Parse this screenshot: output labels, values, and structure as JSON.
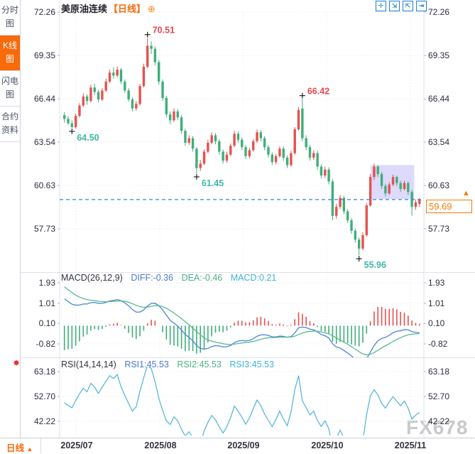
{
  "sidebar": {
    "tabs": [
      {
        "label": "分时图",
        "active": false
      },
      {
        "label": "K线图",
        "active": true
      },
      {
        "label": "闪电图",
        "active": false
      },
      {
        "label": "合约资料",
        "active": false
      }
    ]
  },
  "header": {
    "title": "美原油连续",
    "period": "【日线】",
    "plus_glyph": "⊕"
  },
  "toolbar": {
    "icons": [
      {
        "name": "crosshair-icon",
        "glyph": "✛"
      },
      {
        "name": "zoom-fit-icon",
        "glyph": "⇲"
      },
      {
        "name": "axis-scale-icon",
        "glyph": "⇱"
      },
      {
        "name": "pan-right-icon",
        "glyph": "⇥"
      }
    ]
  },
  "macd_header": {
    "name": "MACD(26,12,9)",
    "diff": "DIFF:-0.36",
    "dea": "DEA:-0.46",
    "macd": "MACD:0.21"
  },
  "rsi_header": {
    "name": "RSI(14,14,14)",
    "rsi1": "RSI1:45.53",
    "rsi2": "RSI2:45.53",
    "rsi3": "RSI3:45.53"
  },
  "price_box": {
    "value": "59.69",
    "arrow": "▲"
  },
  "indicator_icon": {
    "glyph": "✸"
  },
  "watermark": "FX678",
  "bottom_bar": {
    "period_label": "日线",
    "arrow": "▲",
    "months": [
      "2025/07",
      "2025/08",
      "2025/09",
      "2025/10",
      "2025/11"
    ]
  },
  "colors": {
    "up": "#e4524f",
    "down": "#3fae7a",
    "grid": "#e4e7f1",
    "axis_text": "#2e2e3d",
    "dashed_line": "#2f80ed",
    "selection": "rgba(132,122,240,0.28)",
    "diff_line": "#4a86d8",
    "dea_line": "#58b98c",
    "rsi_line": "#4fb2dc",
    "high_label": "#e8464f",
    "low_label": "#3fb8a6",
    "tick": "#a8c6e8",
    "separator": "#dfe2ea"
  },
  "chart_data": {
    "type": "candlestick",
    "title": "美原油连续",
    "interval": "日线",
    "y_axis_labels": [
      72.26,
      69.35,
      66.44,
      63.54,
      60.63,
      57.73
    ],
    "current_price": 59.69,
    "x_axis": {
      "months": [
        "2025/07",
        "2025/08",
        "2025/09",
        "2025/10",
        "2025/11"
      ],
      "month_indices": [
        3.4,
        25.6,
        47.7,
        69.7,
        91.9
      ]
    },
    "annotations": [
      {
        "index": 2,
        "type": "low",
        "label": "64.50"
      },
      {
        "index": 22,
        "type": "high",
        "label": "70.51"
      },
      {
        "index": 35,
        "type": "low",
        "label": "61.45"
      },
      {
        "index": 63,
        "type": "high",
        "label": "66.42"
      },
      {
        "index": 78,
        "type": "low",
        "label": "55.96"
      }
    ],
    "selection_box": {
      "from_index": 82,
      "to_index": 92,
      "top": 62.0,
      "bottom": 59.72
    },
    "macd": {
      "params": "26,12,9",
      "diff": -0.36,
      "dea": -0.46,
      "macd": 0.21,
      "y_labels": [
        1.93,
        1.01,
        0.1,
        -0.82
      ]
    },
    "rsi": {
      "params": "14,14,14",
      "rsi1": 45.53,
      "rsi2": 45.53,
      "rsi3": 45.53,
      "y_labels": [
        63.18,
        52.7,
        42.22
      ]
    },
    "candles": [
      [
        65.35,
        65.55,
        64.85,
        65.1
      ],
      [
        65.1,
        65.3,
        64.7,
        64.8
      ],
      [
        64.8,
        65.0,
        64.5,
        64.55
      ],
      [
        64.55,
        65.45,
        64.45,
        65.3
      ],
      [
        65.3,
        66.15,
        65.2,
        66.0
      ],
      [
        66.0,
        66.8,
        65.9,
        66.6
      ],
      [
        66.6,
        66.75,
        66.05,
        66.3
      ],
      [
        66.3,
        67.4,
        66.2,
        67.2
      ],
      [
        67.2,
        67.45,
        66.7,
        66.9
      ],
      [
        66.9,
        67.05,
        66.2,
        66.4
      ],
      [
        66.4,
        67.15,
        66.3,
        67.0
      ],
      [
        67.0,
        67.8,
        66.9,
        67.6
      ],
      [
        67.6,
        68.4,
        67.5,
        68.2
      ],
      [
        68.2,
        68.55,
        67.8,
        68.0
      ],
      [
        68.0,
        68.6,
        67.9,
        68.4
      ],
      [
        68.4,
        68.5,
        67.45,
        67.6
      ],
      [
        67.6,
        67.75,
        66.85,
        67.0
      ],
      [
        67.0,
        67.15,
        66.25,
        66.4
      ],
      [
        66.4,
        66.55,
        65.6,
        65.8
      ],
      [
        65.8,
        66.3,
        65.65,
        66.1
      ],
      [
        66.1,
        67.45,
        66.0,
        67.3
      ],
      [
        67.3,
        68.8,
        67.2,
        68.6
      ],
      [
        68.6,
        70.51,
        68.5,
        70.0
      ],
      [
        70.0,
        70.3,
        69.45,
        69.8
      ],
      [
        69.8,
        69.95,
        68.7,
        68.9
      ],
      [
        68.9,
        69.05,
        67.4,
        67.6
      ],
      [
        67.6,
        67.75,
        66.3,
        66.5
      ],
      [
        66.5,
        66.65,
        65.2,
        65.4
      ],
      [
        65.4,
        65.6,
        64.75,
        65.0
      ],
      [
        65.0,
        65.8,
        64.9,
        65.6
      ],
      [
        65.6,
        65.75,
        65.0,
        65.2
      ],
      [
        65.2,
        65.35,
        64.1,
        64.3
      ],
      [
        64.3,
        64.45,
        63.3,
        63.5
      ],
      [
        63.5,
        64.0,
        63.35,
        63.8
      ],
      [
        63.8,
        63.95,
        62.9,
        63.1
      ],
      [
        63.1,
        63.2,
        61.45,
        61.8
      ],
      [
        61.8,
        62.35,
        61.6,
        62.1
      ],
      [
        62.1,
        63.05,
        62.0,
        62.9
      ],
      [
        62.9,
        63.7,
        62.8,
        63.5
      ],
      [
        63.5,
        64.2,
        63.4,
        64.0
      ],
      [
        64.0,
        64.15,
        63.4,
        63.6
      ],
      [
        63.6,
        63.75,
        62.7,
        62.9
      ],
      [
        62.9,
        63.05,
        62.1,
        62.3
      ],
      [
        62.3,
        62.9,
        62.15,
        62.7
      ],
      [
        62.7,
        63.45,
        62.6,
        63.3
      ],
      [
        63.3,
        64.3,
        63.2,
        64.1
      ],
      [
        64.1,
        64.25,
        63.5,
        63.7
      ],
      [
        63.7,
        63.85,
        63.0,
        63.2
      ],
      [
        63.2,
        63.35,
        62.4,
        62.6
      ],
      [
        62.6,
        63.15,
        62.45,
        63.0
      ],
      [
        63.0,
        63.75,
        62.9,
        63.6
      ],
      [
        63.6,
        64.4,
        63.5,
        64.2
      ],
      [
        64.2,
        64.35,
        63.6,
        63.8
      ],
      [
        63.8,
        63.95,
        63.0,
        63.2
      ],
      [
        63.2,
        63.35,
        62.5,
        62.7
      ],
      [
        62.7,
        62.85,
        62.0,
        62.2
      ],
      [
        62.2,
        62.75,
        62.05,
        62.6
      ],
      [
        62.6,
        63.25,
        62.5,
        63.1
      ],
      [
        63.1,
        63.25,
        62.3,
        62.5
      ],
      [
        62.5,
        62.65,
        61.8,
        62.0
      ],
      [
        62.0,
        62.95,
        61.9,
        62.8
      ],
      [
        62.8,
        64.55,
        62.7,
        64.4
      ],
      [
        64.4,
        65.9,
        64.3,
        65.7
      ],
      [
        65.8,
        66.42,
        63.6,
        63.8
      ],
      [
        63.8,
        64.0,
        63.0,
        63.2
      ],
      [
        63.2,
        63.35,
        62.3,
        62.5
      ],
      [
        62.5,
        63.0,
        62.35,
        62.8
      ],
      [
        62.8,
        62.95,
        61.7,
        61.9
      ],
      [
        61.9,
        62.05,
        61.1,
        61.3
      ],
      [
        61.3,
        61.9,
        61.15,
        61.7
      ],
      [
        61.7,
        61.85,
        60.7,
        60.9
      ],
      [
        60.9,
        61.05,
        58.3,
        58.6
      ],
      [
        58.6,
        59.4,
        58.4,
        59.2
      ],
      [
        59.2,
        60.0,
        59.05,
        59.8
      ],
      [
        59.8,
        59.95,
        58.7,
        58.9
      ],
      [
        58.9,
        59.05,
        58.1,
        58.3
      ],
      [
        58.3,
        58.45,
        57.4,
        57.6
      ],
      [
        57.6,
        57.75,
        56.8,
        57.0
      ],
      [
        57.0,
        57.15,
        55.96,
        56.4
      ],
      [
        56.4,
        57.5,
        56.3,
        57.3
      ],
      [
        57.3,
        59.45,
        57.2,
        59.3
      ],
      [
        59.3,
        61.4,
        59.2,
        61.2
      ],
      [
        61.2,
        62.1,
        61.0,
        61.9
      ],
      [
        61.9,
        62.0,
        61.2,
        61.4
      ],
      [
        61.4,
        61.55,
        60.4,
        60.6
      ],
      [
        60.6,
        60.75,
        59.9,
        60.1
      ],
      [
        60.1,
        60.85,
        60.0,
        60.7
      ],
      [
        60.7,
        61.35,
        60.6,
        61.2
      ],
      [
        61.2,
        61.3,
        60.6,
        60.8
      ],
      [
        60.8,
        60.95,
        60.2,
        60.4
      ],
      [
        60.4,
        60.95,
        60.3,
        60.8
      ],
      [
        60.8,
        60.9,
        60.0,
        60.2
      ],
      [
        60.2,
        60.35,
        58.6,
        59.2
      ],
      [
        59.2,
        59.7,
        59.0,
        59.5
      ],
      [
        59.4,
        59.8,
        59.2,
        59.69
      ]
    ]
  }
}
